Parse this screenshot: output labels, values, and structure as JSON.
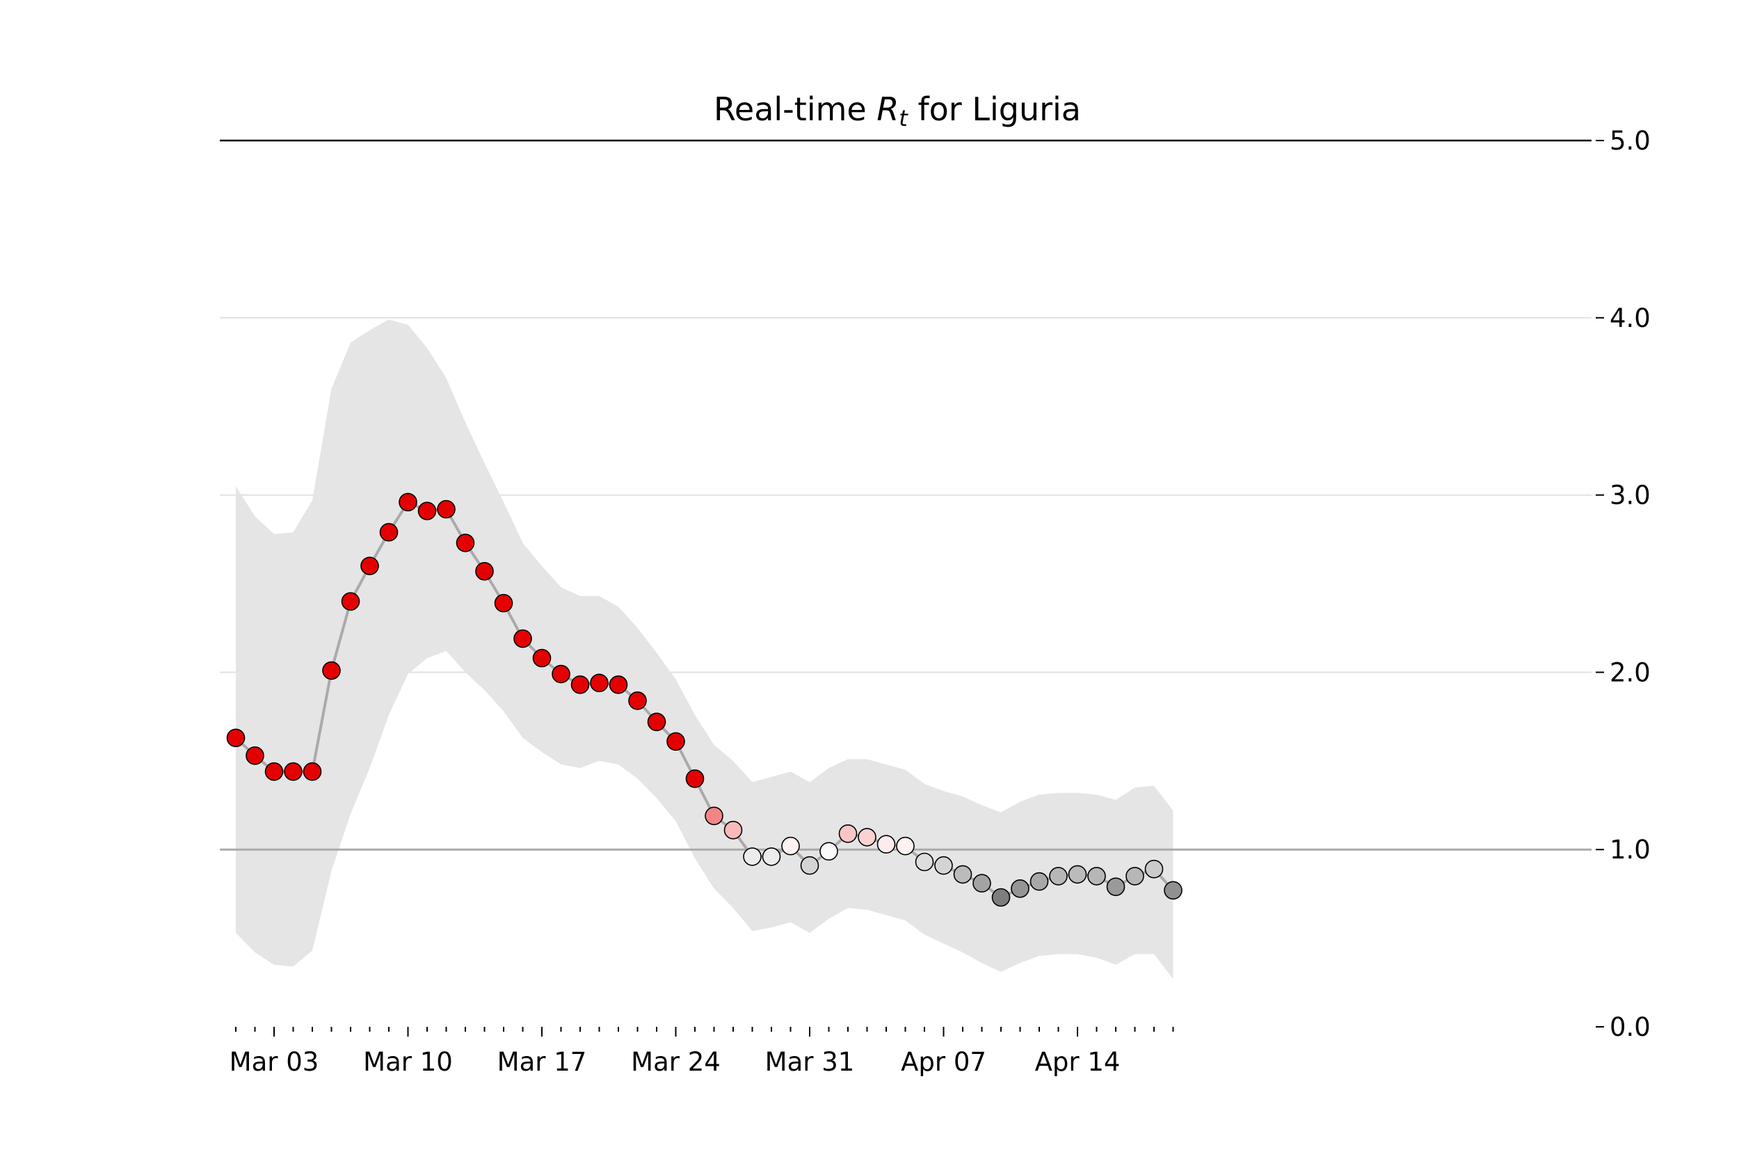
{
  "chart_data": {
    "type": "line",
    "title": "Real-time R_t for Liguria",
    "title_parts": {
      "prefix": "Real-time ",
      "symbol": "R",
      "subscript": "t",
      "suffix": " for Liguria"
    },
    "xlabel": "",
    "ylabel": "",
    "ylim": [
      0.0,
      5.0
    ],
    "y_ticks": [
      "0.0",
      "1.0",
      "2.0",
      "3.0",
      "4.0",
      "5.0"
    ],
    "x_ticks": [
      {
        "date": "2020-03-03",
        "label": "Mar 03"
      },
      {
        "date": "2020-03-10",
        "label": "Mar 10"
      },
      {
        "date": "2020-03-17",
        "label": "Mar 17"
      },
      {
        "date": "2020-03-24",
        "label": "Mar 24"
      },
      {
        "date": "2020-03-31",
        "label": "Mar 31"
      },
      {
        "date": "2020-04-07",
        "label": "Apr 07"
      },
      {
        "date": "2020-04-14",
        "label": "Apr 14"
      }
    ],
    "x_range": [
      "2020-03-01",
      "2020-04-19"
    ],
    "reference_line": 1.0,
    "grid": "horizontal",
    "y_axis_side": "right",
    "dates": [
      "2020-03-01",
      "2020-03-02",
      "2020-03-03",
      "2020-03-04",
      "2020-03-05",
      "2020-03-06",
      "2020-03-07",
      "2020-03-08",
      "2020-03-09",
      "2020-03-10",
      "2020-03-11",
      "2020-03-12",
      "2020-03-13",
      "2020-03-14",
      "2020-03-15",
      "2020-03-16",
      "2020-03-17",
      "2020-03-18",
      "2020-03-19",
      "2020-03-20",
      "2020-03-21",
      "2020-03-22",
      "2020-03-23",
      "2020-03-24",
      "2020-03-25",
      "2020-03-26",
      "2020-03-27",
      "2020-03-28",
      "2020-03-29",
      "2020-03-30",
      "2020-03-31",
      "2020-04-01",
      "2020-04-02",
      "2020-04-03",
      "2020-04-04",
      "2020-04-05",
      "2020-04-06",
      "2020-04-07",
      "2020-04-08",
      "2020-04-09",
      "2020-04-10",
      "2020-04-11",
      "2020-04-12",
      "2020-04-13",
      "2020-04-14",
      "2020-04-15",
      "2020-04-16",
      "2020-04-17",
      "2020-04-18",
      "2020-04-19"
    ],
    "series": [
      {
        "values": [
          1.63,
          1.53,
          1.44,
          1.44,
          1.44,
          2.01,
          2.4,
          2.6,
          2.79,
          2.96,
          2.91,
          2.92,
          2.73,
          2.57,
          2.39,
          2.19,
          2.08,
          1.99,
          1.93,
          1.94,
          1.93,
          1.84,
          1.72,
          1.61,
          1.4,
          1.19,
          1.11,
          0.96,
          0.96,
          1.02,
          0.91,
          0.99,
          1.09,
          1.07,
          1.03,
          1.02,
          0.93,
          0.91,
          0.86,
          0.81,
          0.73,
          0.78,
          0.82,
          0.85,
          0.86,
          0.85,
          0.79,
          0.85,
          0.89,
          0.77
        ],
        "lower": [
          0.53,
          0.42,
          0.35,
          0.34,
          0.43,
          0.88,
          1.2,
          1.46,
          1.76,
          1.99,
          2.08,
          2.12,
          2.0,
          1.9,
          1.78,
          1.63,
          1.55,
          1.48,
          1.46,
          1.5,
          1.48,
          1.4,
          1.29,
          1.16,
          0.95,
          0.78,
          0.67,
          0.54,
          0.56,
          0.59,
          0.53,
          0.61,
          0.67,
          0.66,
          0.63,
          0.6,
          0.52,
          0.47,
          0.42,
          0.36,
          0.31,
          0.36,
          0.4,
          0.41,
          0.41,
          0.39,
          0.35,
          0.41,
          0.41,
          0.27
        ],
        "upper": [
          3.05,
          2.88,
          2.78,
          2.79,
          2.97,
          3.6,
          3.86,
          3.93,
          3.99,
          3.96,
          3.83,
          3.66,
          3.41,
          3.18,
          2.96,
          2.73,
          2.6,
          2.48,
          2.43,
          2.43,
          2.37,
          2.25,
          2.11,
          1.96,
          1.76,
          1.59,
          1.5,
          1.38,
          1.41,
          1.44,
          1.38,
          1.46,
          1.51,
          1.51,
          1.48,
          1.45,
          1.37,
          1.33,
          1.3,
          1.25,
          1.21,
          1.27,
          1.31,
          1.32,
          1.32,
          1.31,
          1.28,
          1.35,
          1.36,
          1.22
        ]
      }
    ],
    "colors": {
      "high": "#e41a1c",
      "band": "#e5e5e5",
      "line": "#aaaaaa",
      "reference": "#aaaaaa",
      "grid": "#e0e0e0",
      "top_spine": "#000000"
    }
  }
}
